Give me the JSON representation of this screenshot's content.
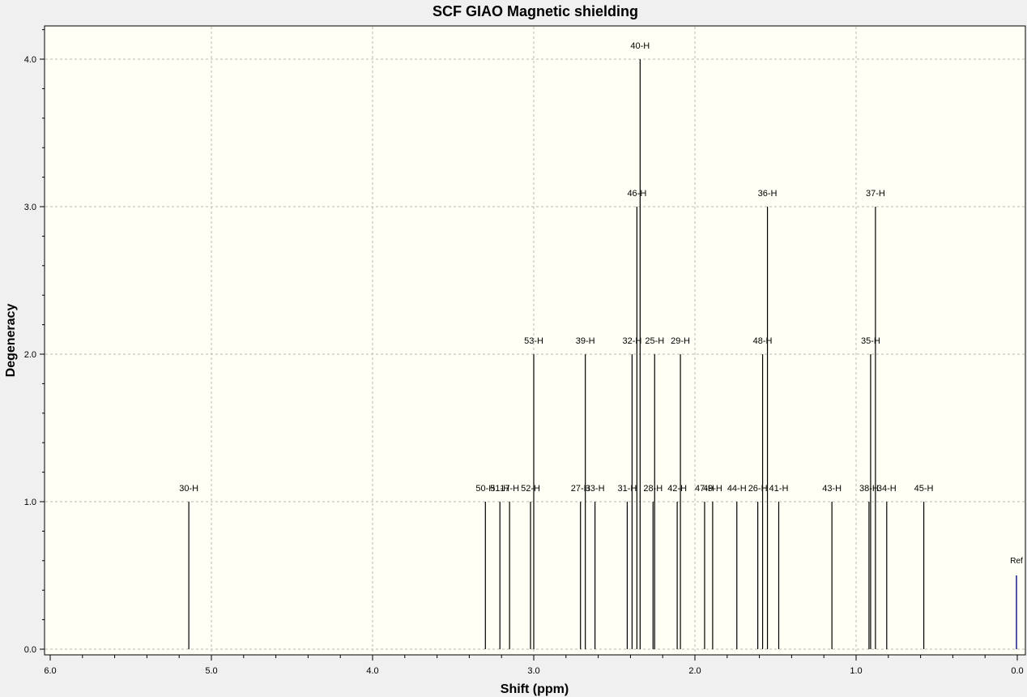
{
  "chart_data": {
    "type": "bar",
    "title": "SCF GIAO Magnetic shielding",
    "xlabel": "Shift (ppm)",
    "ylabel": "Degeneracy",
    "xlim": [
      6.0,
      0.0
    ],
    "ylim": [
      0,
      4.2
    ],
    "x_reversed": true,
    "grid": true,
    "xticks": [
      "6.0",
      "5.0",
      "4.0",
      "3.0",
      "2.0",
      "1.0",
      "0.0"
    ],
    "yticks": [
      "0.0",
      "1.0",
      "2.0",
      "3.0",
      "4.0"
    ],
    "colors": {
      "background": "#fffff5",
      "peak": "#000000",
      "ref": "#1a1a8c",
      "grid": "#b8b8b8"
    },
    "peaks": [
      {
        "label": "30-H",
        "x": 5.14,
        "y": 1
      },
      {
        "label": "50-H",
        "x": 3.3,
        "y": 1
      },
      {
        "label": "51-H",
        "x": 3.21,
        "y": 1
      },
      {
        "label": "17-H",
        "x": 3.15,
        "y": 1
      },
      {
        "label": "52-H",
        "x": 3.02,
        "y": 1
      },
      {
        "label": "53-H",
        "x": 3.0,
        "y": 2
      },
      {
        "label": "27-H",
        "x": 2.71,
        "y": 1
      },
      {
        "label": "39-H",
        "x": 2.68,
        "y": 2
      },
      {
        "label": "33-H",
        "x": 2.62,
        "y": 1
      },
      {
        "label": "31-H",
        "x": 2.42,
        "y": 1
      },
      {
        "label": "32-H",
        "x": 2.39,
        "y": 2
      },
      {
        "label": "46-H",
        "x": 2.36,
        "y": 3
      },
      {
        "label": "40-H",
        "x": 2.34,
        "y": 4
      },
      {
        "label": "28-H",
        "x": 2.26,
        "y": 1
      },
      {
        "label": "25-H",
        "x": 2.25,
        "y": 2
      },
      {
        "label": "42-H",
        "x": 2.11,
        "y": 1
      },
      {
        "label": "29-H",
        "x": 2.09,
        "y": 2
      },
      {
        "label": "47-H",
        "x": 1.94,
        "y": 1
      },
      {
        "label": "49-H",
        "x": 1.89,
        "y": 1
      },
      {
        "label": "44-H",
        "x": 1.74,
        "y": 1
      },
      {
        "label": "26-H",
        "x": 1.61,
        "y": 1
      },
      {
        "label": "48-H",
        "x": 1.58,
        "y": 2
      },
      {
        "label": "36-H",
        "x": 1.55,
        "y": 3
      },
      {
        "label": "41-H",
        "x": 1.48,
        "y": 1
      },
      {
        "label": "43-H",
        "x": 1.15,
        "y": 1
      },
      {
        "label": "38-H",
        "x": 0.92,
        "y": 1
      },
      {
        "label": "35-H",
        "x": 0.91,
        "y": 2
      },
      {
        "label": "37-H",
        "x": 0.88,
        "y": 3
      },
      {
        "label": "34-H",
        "x": 0.81,
        "y": 1
      },
      {
        "label": "45-H",
        "x": 0.58,
        "y": 1
      }
    ],
    "reference": {
      "label": "Ref",
      "x": 0.0,
      "y": 0.5
    }
  }
}
